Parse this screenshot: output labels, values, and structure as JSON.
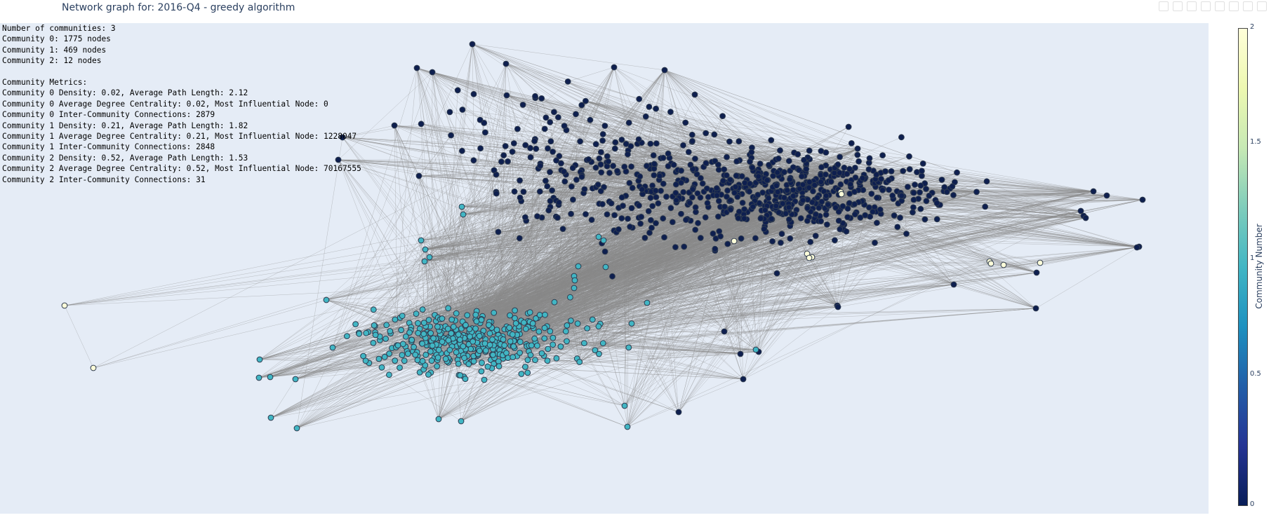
{
  "title": "Network graph for: 2016-Q4 - greedy algorithm",
  "annotation_lines": [
    "Number of communities: 3",
    "Community 0: 1775 nodes",
    "Community 1: 469 nodes",
    "Community 2: 12 nodes",
    "",
    "Community Metrics:",
    "Community 0 Density: 0.02, Average Path Length: 2.12",
    "Community 0 Average Degree Centrality: 0.02, Most Influential Node: 0",
    "Community 0 Inter-Community Connections: 2879",
    "Community 1 Density: 0.21, Average Path Length: 1.82",
    "Community 1 Average Degree Centrality: 0.21, Most Influential Node: 1228047",
    "Community 1 Inter-Community Connections: 2848",
    "Community 2 Density: 0.52, Average Path Length: 1.53",
    "Community 2 Average Degree Centrality: 0.52, Most Influential Node: 70167555",
    "Community 2 Inter-Community Connections: 31"
  ],
  "colors": {
    "plot_bg": "#e5ecf6",
    "edge": "#888888",
    "node_outline": "#2f3b4f",
    "community_0": "#0e1f4f",
    "community_1": "#41b6c4",
    "community_2": "#ffffd9"
  },
  "chart_data": {
    "type": "scatter",
    "subtype": "network-graph",
    "title": "Network graph for: 2016-Q4 - greedy algorithm",
    "communities": [
      {
        "id": 0,
        "nodes": 1775,
        "density": 0.02,
        "avg_path_length": 2.12,
        "avg_degree_centrality": 0.02,
        "most_influential_node": "0",
        "inter_community_connections": 2879
      },
      {
        "id": 1,
        "nodes": 469,
        "density": 0.21,
        "avg_path_length": 1.82,
        "avg_degree_centrality": 0.21,
        "most_influential_node": "1228047",
        "inter_community_connections": 2848
      },
      {
        "id": 2,
        "nodes": 12,
        "density": 0.52,
        "avg_path_length": 1.53,
        "avg_degree_centrality": 0.52,
        "most_influential_node": "70167555",
        "inter_community_connections": 31
      }
    ],
    "colorbar": {
      "title": "Community Number",
      "range": [
        0,
        2
      ],
      "ticks": [
        "0",
        "0.5",
        "1",
        "1.5",
        "2"
      ],
      "colorscale": "YlGnBu"
    },
    "axes_visible": false,
    "grid": false,
    "showlegend": false
  }
}
